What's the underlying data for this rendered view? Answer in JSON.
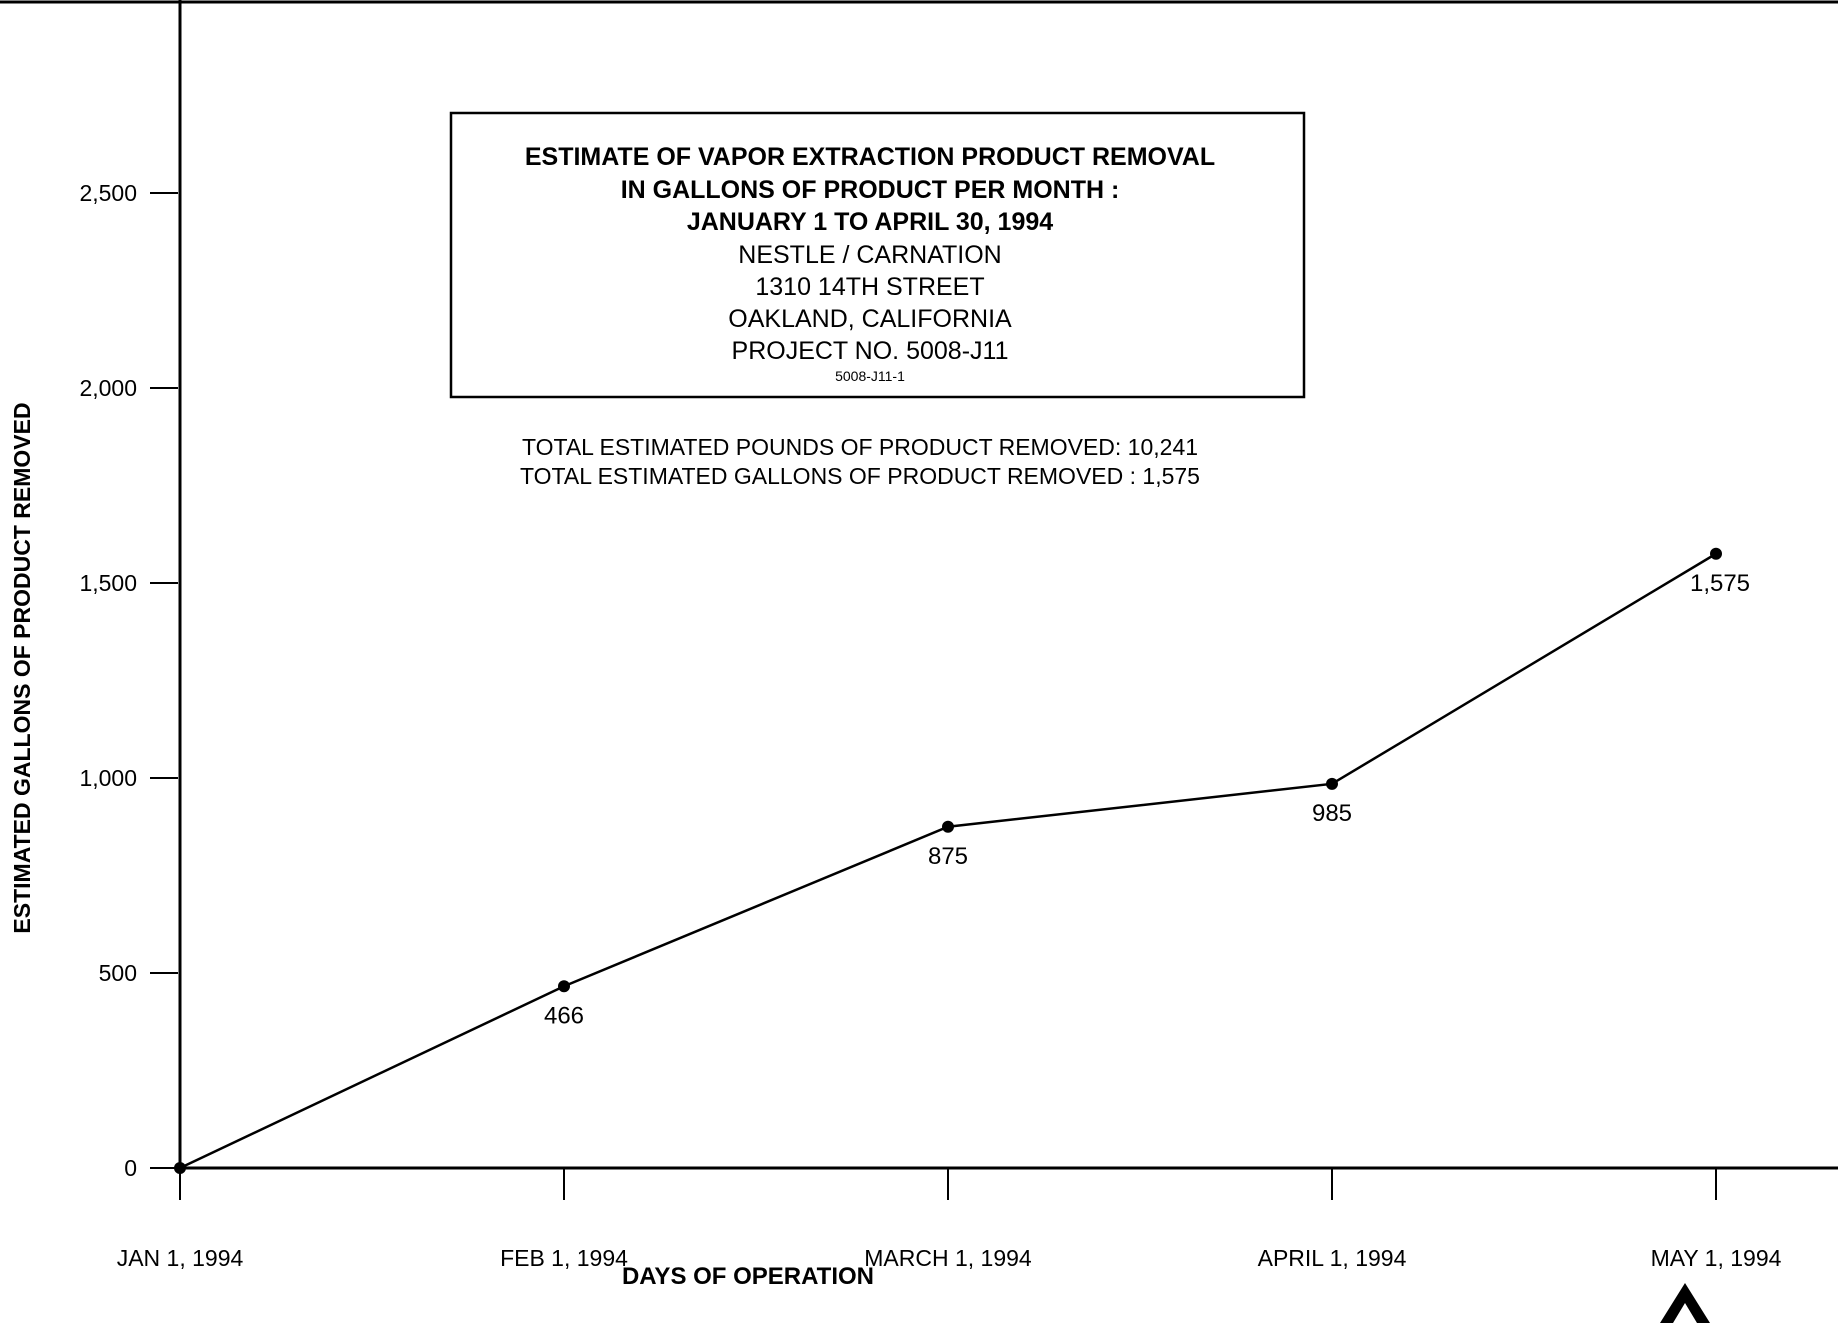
{
  "chart_data": {
    "type": "line",
    "title_box": {
      "lines": [
        "ESTIMATE OF VAPOR EXTRACTION PRODUCT REMOVAL",
        "IN GALLONS OF PRODUCT PER MONTH :",
        "JANUARY 1 TO APRIL 30, 1994",
        "NESTLE / CARNATION",
        "1310 14TH STREET",
        "OAKLAND, CALIFORNIA",
        "PROJECT NO. 5008-J11"
      ],
      "figure_code": "5008-J11-1"
    },
    "totals": [
      "TOTAL ESTIMATED POUNDS OF PRODUCT REMOVED: 10,241",
      "TOTAL ESTIMATED GALLONS OF PRODUCT REMOVED : 1,575"
    ],
    "xlabel": "DAYS OF OPERATION",
    "ylabel": "ESTIMATED GALLONS OF PRODUCT REMOVED",
    "categories": [
      "JAN 1, 1994",
      "FEB 1, 1994",
      "MARCH 1, 1994",
      "APRIL 1, 1994",
      "MAY 1, 1994"
    ],
    "values": [
      0,
      466,
      875,
      985,
      1575
    ],
    "data_labels": [
      "",
      "466",
      "875",
      "985",
      "1,575"
    ],
    "yticks": [
      {
        "value": 0,
        "label": "0"
      },
      {
        "value": 500,
        "label": "500"
      },
      {
        "value": 1000,
        "label": "1,000"
      },
      {
        "value": 1500,
        "label": "1,500"
      },
      {
        "value": 2000,
        "label": "2,000"
      },
      {
        "value": 2500,
        "label": "2,500"
      }
    ],
    "ylim": [
      0,
      3000
    ],
    "grid": false,
    "legend": "none",
    "line_color": "#000000"
  }
}
